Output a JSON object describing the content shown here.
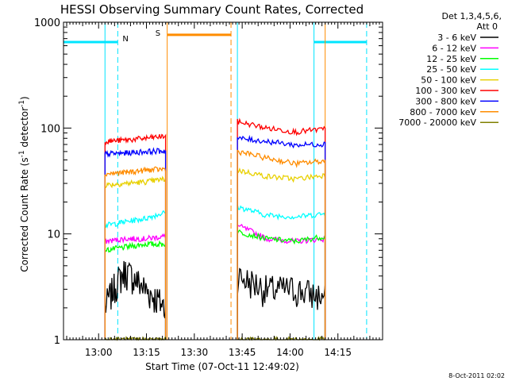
{
  "chart_data": {
    "type": "line",
    "title": "HESSI Observing Summary Count Rates, Corrected",
    "xlabel": "Start Time (07-Oct-11 12:49:02)",
    "ylabel": "Corrected Count Rate (s",
    "ylabel_sup1": "-1",
    "ylabel_mid": " detector",
    "ylabel_sup2": "-1",
    "ylabel_end": ")",
    "x_range_minutes": [
      0,
      100
    ],
    "y_scale": "log",
    "ylim": [
      1,
      1000
    ],
    "x_ticks": [
      {
        "label": "13:00",
        "t": 11
      },
      {
        "label": "13:15",
        "t": 26
      },
      {
        "label": "13:30",
        "t": 41
      },
      {
        "label": "13:45",
        "t": 56
      },
      {
        "label": "14:00",
        "t": 71
      },
      {
        "label": "14:15",
        "t": 86
      }
    ],
    "y_ticks": [
      {
        "label": "1",
        "v": 1
      },
      {
        "label": "10",
        "v": 10
      },
      {
        "label": "100",
        "v": 100
      },
      {
        "label": "1000",
        "v": 1000
      }
    ],
    "legend_header": [
      "Det 1,3,4,5,6,",
      "Att 0"
    ],
    "footer_timestamp": "8-Oct-2011 02:02",
    "markers": [
      {
        "label": "N",
        "color": "#00e5ff"
      },
      {
        "label": "S",
        "color": "#ff8c00"
      }
    ],
    "flags": {
      "night_level": 650,
      "night_intervals": [
        [
          0,
          17
        ],
        [
          78.5,
          95
        ]
      ],
      "saa_level": 760,
      "saa_interval": [
        32.5,
        52.5
      ]
    },
    "vlines": [
      {
        "t": 0,
        "color": "#00e5ff",
        "style": "solid"
      },
      {
        "t": 13,
        "color": "#00e5ff",
        "style": "solid"
      },
      {
        "t": 17,
        "color": "#00e5ff",
        "style": "dashed"
      },
      {
        "t": 32.5,
        "color": "#ff8c00",
        "style": "solid"
      },
      {
        "t": 52.5,
        "color": "#ff8c00",
        "style": "dashed"
      },
      {
        "t": 54.5,
        "color": "#00e5ff",
        "style": "solid"
      },
      {
        "t": 78.5,
        "color": "#00e5ff",
        "style": "solid"
      },
      {
        "t": 82,
        "color": "#ff8c00",
        "style": "solid"
      },
      {
        "t": 95,
        "color": "#00e5ff",
        "style": "dashed"
      }
    ],
    "segments": [
      [
        13,
        32
      ],
      [
        54.5,
        82
      ]
    ],
    "series": [
      {
        "name": "3 - 6 keV",
        "color": "#000000",
        "values": [
          [
            2,
            4.5,
            3,
            2
          ],
          [
            4,
            3,
            3,
            2.5
          ]
        ]
      },
      {
        "name": "6 - 12 keV",
        "color": "#ff00ff",
        "values": [
          [
            8.5,
            9,
            9,
            9.5
          ],
          [
            12,
            9,
            8.5,
            9
          ]
        ]
      },
      {
        "name": "12 - 25 keV",
        "color": "#00ff00",
        "values": [
          [
            7,
            7.5,
            8,
            8
          ],
          [
            10.5,
            9,
            8.5,
            9.5
          ]
        ]
      },
      {
        "name": "25 - 50 keV",
        "color": "#00ffff",
        "values": [
          [
            12,
            13,
            14,
            16
          ],
          [
            18,
            15,
            14.5,
            15.5
          ]
        ]
      },
      {
        "name": "50 - 100 keV",
        "color": "#e8d000",
        "values": [
          [
            29,
            30,
            31,
            33
          ],
          [
            40,
            35,
            33,
            36
          ]
        ]
      },
      {
        "name": "100 - 300 keV",
        "color": "#ff0000",
        "values": [
          [
            75,
            77,
            80,
            84
          ],
          [
            115,
            100,
            92,
            98
          ]
        ]
      },
      {
        "name": "300 - 800 keV",
        "color": "#0000ff",
        "values": [
          [
            57,
            58,
            60,
            61
          ],
          [
            80,
            75,
            69,
            71
          ]
        ]
      },
      {
        "name": "800 - 7000 keV",
        "color": "#ff8c00",
        "values": [
          [
            37,
            38,
            40,
            41
          ],
          [
            60,
            52,
            46,
            49
          ]
        ]
      },
      {
        "name": "7000 - 20000 keV",
        "color": "#808000",
        "values": [
          [
            1,
            1,
            1,
            1
          ],
          [
            1,
            1,
            1,
            1
          ]
        ]
      }
    ]
  }
}
